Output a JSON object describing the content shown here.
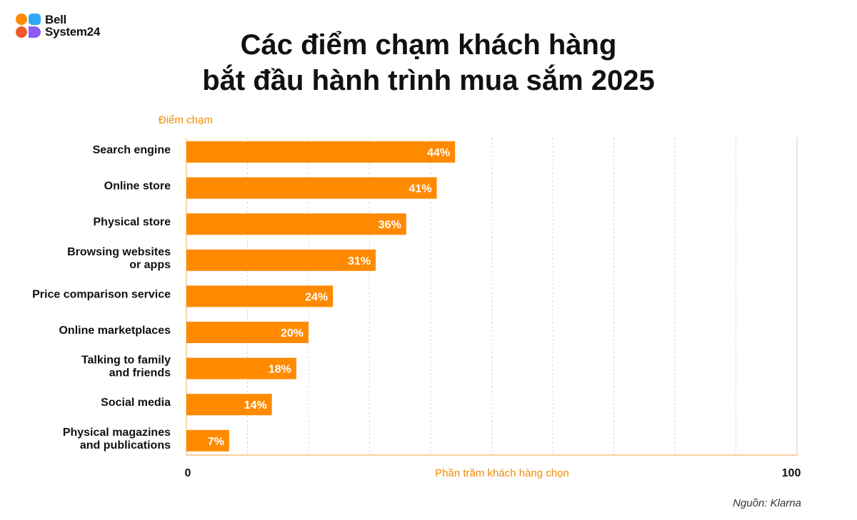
{
  "brand": {
    "name_line1": "Bell",
    "name_line2": "System24",
    "colors": [
      "#ff8a00",
      "#2ea8f5",
      "#f25a2b",
      "#8b5cf6"
    ]
  },
  "title": {
    "line1": "Các điểm chạm khách hàng",
    "line2": "bắt đầu hành trình mua sắm 2025"
  },
  "source": "Nguồn: Klarna",
  "colors": {
    "bar": "#ff8a00",
    "axis_title": "#f28a00",
    "grid": "#d8d8d8"
  },
  "chart_data": {
    "type": "bar",
    "orientation": "horizontal",
    "y_axis_title": "Điểm chạm",
    "x_axis_title": "Phần trăm khách hàng chọn",
    "xlim": [
      0,
      100
    ],
    "x_tick_labels": [
      "0",
      "100"
    ],
    "grid": true,
    "categories": [
      [
        "Search engine"
      ],
      [
        "Online store"
      ],
      [
        "Physical store"
      ],
      [
        "Browsing websites",
        "or apps"
      ],
      [
        "Price comparison service"
      ],
      [
        "Online marketplaces"
      ],
      [
        "Talking to family",
        "and friends"
      ],
      [
        "Social media"
      ],
      [
        "Physical magazines",
        "and publications"
      ]
    ],
    "values": [
      44,
      41,
      36,
      31,
      24,
      20,
      18,
      14,
      7
    ],
    "value_labels": [
      "44%",
      "41%",
      "36%",
      "31%",
      "24%",
      "20%",
      "18%",
      "14%",
      "7%"
    ]
  }
}
